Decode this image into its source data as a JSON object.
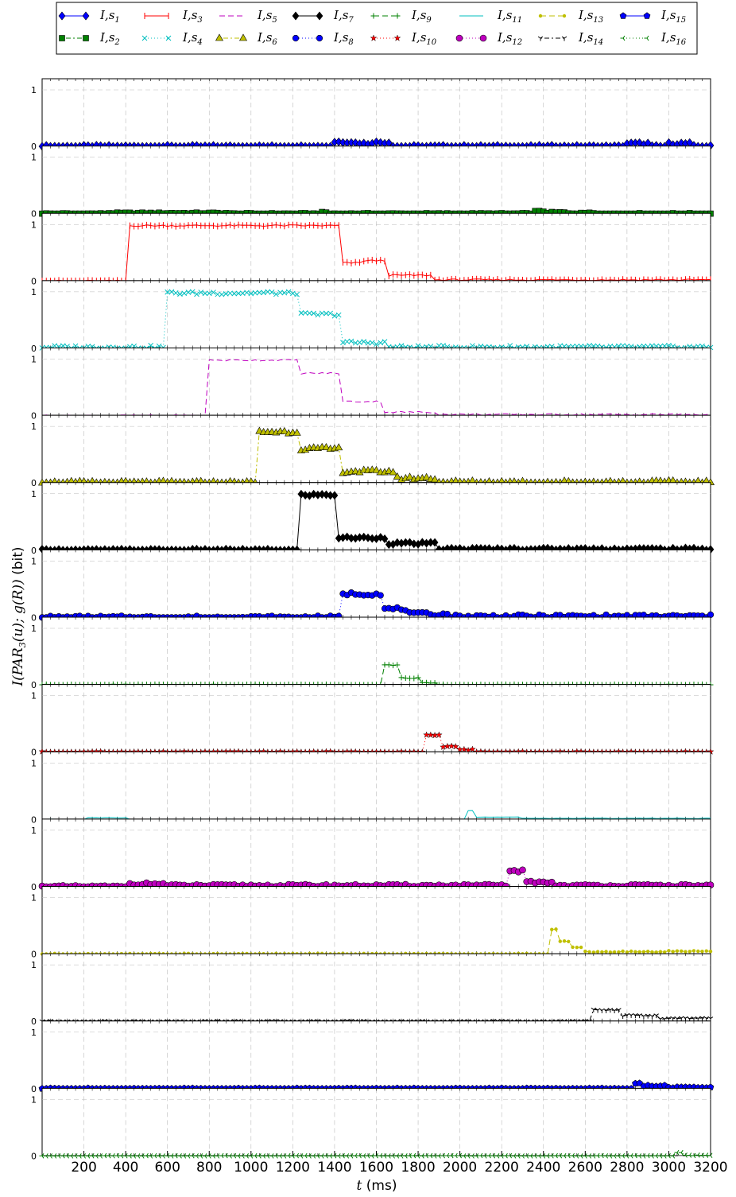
{
  "chart_data": {
    "type": "line",
    "xlabel_var": "t",
    "xlabel_unit": "(ms)",
    "ylabel_main": "I(PAR",
    "ylabel_sub": "3",
    "ylabel_rest": "(u);  g(R))",
    "ylabel_unit": "(bit)",
    "x_ticks": [
      200,
      400,
      600,
      800,
      1000,
      1200,
      1400,
      1600,
      1800,
      2000,
      2200,
      2400,
      2600,
      2800,
      3000,
      3200
    ],
    "xlim": [
      0,
      3200
    ],
    "ylim": [
      0,
      1
    ],
    "y_tick_labels": [
      "0",
      "1"
    ],
    "grid": true,
    "legend_position": "top",
    "legend_prefix": "I,s",
    "x_step": 20,
    "series": [
      {
        "name": "I,s1",
        "sub": "1",
        "color": "#0000ff",
        "marker": "diamond",
        "dash": "none",
        "events": [
          [
            1440,
            0.08,
            40
          ],
          [
            1480,
            0.06,
            40
          ],
          [
            1550,
            0.05,
            50
          ],
          [
            1620,
            0.07,
            40
          ],
          [
            2850,
            0.05,
            60
          ],
          [
            3050,
            0.05,
            60
          ]
        ],
        "noise": 0.02
      },
      {
        "name": "I,s2",
        "sub": "2",
        "color": "#008000",
        "marker": "square",
        "dash": "2,3,6,3",
        "events": [
          [
            600,
            0.01,
            280
          ],
          [
            1350,
            0.02,
            20
          ],
          [
            2380,
            0.04,
            30
          ],
          [
            2460,
            0.02,
            40
          ],
          [
            2600,
            0.02,
            30
          ]
        ],
        "noise": 0.01
      },
      {
        "name": "I,s3",
        "sub": "3",
        "color": "#ff0000",
        "marker": "vline",
        "dash": "none",
        "steps": [
          [
            0,
            0
          ],
          [
            420,
            0.98
          ],
          [
            1440,
            0.32
          ],
          [
            1540,
            0.36
          ],
          [
            1650,
            0.1
          ],
          [
            1880,
            0.02
          ]
        ],
        "noise": 0.015
      },
      {
        "name": "I,s4",
        "sub": "4",
        "color": "#00bfbf",
        "marker": "x",
        "dash": "1,3",
        "steps": [
          [
            0,
            0.02
          ],
          [
            600,
            0.98
          ],
          [
            1240,
            0.6
          ],
          [
            1440,
            0.1
          ],
          [
            1650,
            0.02
          ]
        ],
        "noise": 0.03
      },
      {
        "name": "I,s5",
        "sub": "5",
        "color": "#bf00bf",
        "marker": "none",
        "dash": "7,4",
        "steps": [
          [
            0,
            0
          ],
          [
            800,
            0.98
          ],
          [
            1240,
            0.75
          ],
          [
            1440,
            0.25
          ],
          [
            1640,
            0.06
          ],
          [
            1900,
            0.02
          ]
        ],
        "noise": 0.015
      },
      {
        "name": "I,s6",
        "sub": "6",
        "color": "#bfbf00",
        "marker": "triangle",
        "dash": "2,3,6,3",
        "steps": [
          [
            0,
            0
          ],
          [
            1040,
            0.9
          ],
          [
            1240,
            0.6
          ],
          [
            1440,
            0.2
          ],
          [
            1700,
            0.08
          ],
          [
            1900,
            0.01
          ]
        ],
        "noise": 0.03
      },
      {
        "name": "I,s7",
        "sub": "7",
        "color": "#000000",
        "marker": "diamond",
        "dash": "none",
        "steps": [
          [
            0,
            0
          ],
          [
            1240,
            0.98
          ],
          [
            1420,
            0.22
          ],
          [
            1650,
            0.12
          ],
          [
            1900,
            0.02
          ]
        ],
        "noise": 0.02
      },
      {
        "name": "I,s8",
        "sub": "8",
        "color": "#0000ff",
        "marker": "hexagon",
        "dash": "1,3",
        "steps": [
          [
            0,
            0
          ],
          [
            1440,
            0.42
          ],
          [
            1640,
            0.15
          ],
          [
            1760,
            0.06
          ],
          [
            1950,
            0.02
          ]
        ],
        "noise": 0.03
      },
      {
        "name": "I,s9",
        "sub": "9",
        "color": "#008000",
        "marker": "plus",
        "dash": "7,4",
        "steps": [
          [
            0,
            0
          ],
          [
            1640,
            0.35
          ],
          [
            1720,
            0.12
          ],
          [
            1820,
            0.03
          ],
          [
            1900,
            0
          ]
        ],
        "noise": 0.01
      },
      {
        "name": "I,s10",
        "sub": "10",
        "color": "#ff0000",
        "marker": "star",
        "dash": "1,3",
        "steps": [
          [
            0,
            0
          ],
          [
            1840,
            0.3
          ],
          [
            1920,
            0.1
          ],
          [
            2000,
            0.04
          ],
          [
            2080,
            0
          ]
        ],
        "noise": 0.01
      },
      {
        "name": "I,s11",
        "sub": "11",
        "color": "#00bfbf",
        "marker": "none",
        "dash": "none",
        "steps": [
          [
            0,
            0
          ],
          [
            220,
            0.03
          ],
          [
            420,
            0
          ],
          [
            2040,
            0.16
          ],
          [
            2080,
            0.04
          ],
          [
            2300,
            0.02
          ]
        ],
        "noise": 0.005
      },
      {
        "name": "I,s12",
        "sub": "12",
        "color": "#bf00bf",
        "marker": "circle",
        "dash": "1,3",
        "steps": [
          [
            0,
            0
          ],
          [
            420,
            0.05
          ],
          [
            600,
            0.02
          ],
          [
            2240,
            0.28
          ],
          [
            2320,
            0.08
          ],
          [
            2460,
            0.02
          ]
        ],
        "noise": 0.02
      },
      {
        "name": "I,s13",
        "sub": "13",
        "color": "#bfbf00",
        "marker": "smalldot",
        "dash": "7,4",
        "steps": [
          [
            0,
            0
          ],
          [
            2440,
            0.44
          ],
          [
            2480,
            0.22
          ],
          [
            2540,
            0.12
          ],
          [
            2600,
            0.04
          ],
          [
            3000,
            0.05
          ]
        ],
        "noise": 0.01
      },
      {
        "name": "I,s14",
        "sub": "14",
        "color": "#000000",
        "marker": "tri",
        "dash": "2,3,6,3",
        "steps": [
          [
            0,
            0
          ],
          [
            2640,
            0.2
          ],
          [
            2780,
            0.1
          ],
          [
            2960,
            0.05
          ]
        ],
        "noise": 0.01
      },
      {
        "name": "I,s15",
        "sub": "15",
        "color": "#0000ff",
        "marker": "pentagon",
        "dash": "none",
        "steps": [
          [
            0,
            0
          ],
          [
            2840,
            0.1
          ],
          [
            2880,
            0.05
          ],
          [
            3000,
            0.02
          ]
        ],
        "noise": 0.01
      },
      {
        "name": "I,s16",
        "sub": "16",
        "color": "#008000",
        "marker": "tri_left",
        "dash": "1,3",
        "steps": [
          [
            0,
            0
          ],
          [
            3040,
            0.06
          ],
          [
            3080,
            0.01
          ]
        ],
        "noise": 0.005
      }
    ]
  }
}
